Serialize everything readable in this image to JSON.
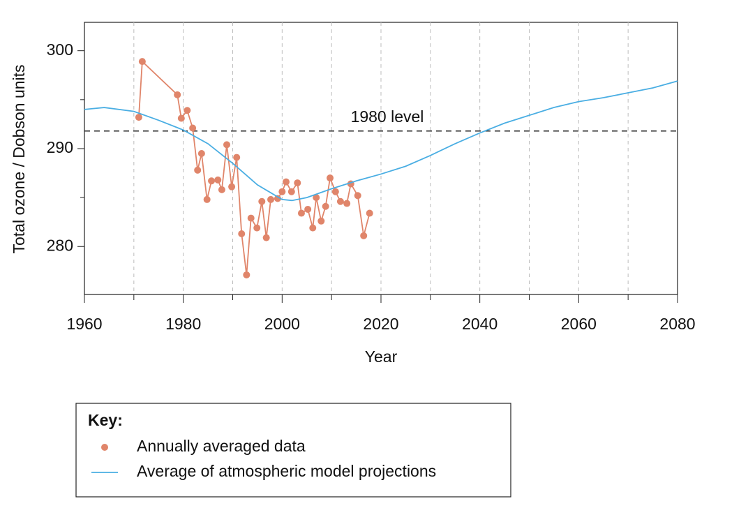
{
  "chart_data": {
    "type": "line",
    "xlabel": "Year",
    "ylabel": "Total ozone / Dobson units",
    "xlim": [
      1960,
      2080
    ],
    "xticks": [
      1960,
      1980,
      2000,
      2020,
      2040,
      2060,
      2080
    ],
    "x_minor_ticks": [
      1970,
      1990,
      2010,
      2030,
      2050,
      2070
    ],
    "x_grid": [
      1970,
      1980,
      1990,
      2000,
      2010,
      2020,
      2030,
      2040,
      2050,
      2060,
      2070
    ],
    "ylim": [
      275.1,
      302.9
    ],
    "yticks": [
      280,
      290,
      300
    ],
    "y_minor_ticks": [
      285,
      295
    ],
    "reference_line": {
      "value": 291.8,
      "label": "1980 level"
    },
    "legend_title": "Key:",
    "legend_position": "below",
    "series": [
      {
        "name": "Annually averaged data",
        "color": "#e0856a",
        "markers": true,
        "x": [
          1971,
          1971.7,
          1978.8,
          1979.6,
          1980.8,
          1981.9,
          1982.9,
          1983.7,
          1984.8,
          1985.7,
          1987.0,
          1987.8,
          1988.8,
          1989.8,
          1990.8,
          1991.8,
          1992.8,
          1993.7,
          1994.9,
          1995.9,
          1996.8,
          1997.7,
          1999.1,
          2000.0,
          2000.8,
          2001.9,
          2003.1,
          2003.9,
          2005.2,
          2006.2,
          2006.9,
          2007.9,
          2008.8,
          2009.7,
          2010.8,
          2011.8,
          2013.1,
          2013.9,
          2015.3,
          2016.5,
          2017.7
        ],
        "values": [
          293.2,
          298.9,
          295.5,
          293.1,
          293.9,
          292.1,
          287.8,
          289.5,
          284.8,
          286.7,
          286.8,
          285.8,
          290.4,
          286.1,
          289.1,
          281.3,
          277.1,
          282.9,
          281.9,
          284.6,
          280.9,
          284.8,
          284.9,
          285.6,
          286.6,
          285.6,
          286.5,
          283.4,
          283.8,
          281.9,
          285.0,
          282.6,
          284.1,
          287.0,
          285.6,
          284.6,
          284.4,
          286.4,
          285.2,
          281.1,
          283.4
        ]
      },
      {
        "name": "Average of atmospheric model projections",
        "color": "#4aaee3",
        "markers": false,
        "x": [
          1960,
          1964,
          1970,
          1975,
          1980,
          1985,
          1990,
          1995,
          2000,
          2002,
          2005,
          2010,
          2015,
          2020,
          2025,
          2030,
          2035,
          2040,
          2045,
          2050,
          2055,
          2060,
          2065,
          2070,
          2075,
          2080
        ],
        "values": [
          294.0,
          294.2,
          293.8,
          292.9,
          291.9,
          290.5,
          288.5,
          286.3,
          284.8,
          284.7,
          285.0,
          285.9,
          286.7,
          287.4,
          288.2,
          289.3,
          290.5,
          291.6,
          292.6,
          293.4,
          294.2,
          294.8,
          295.2,
          295.7,
          296.2,
          296.9
        ]
      }
    ]
  }
}
